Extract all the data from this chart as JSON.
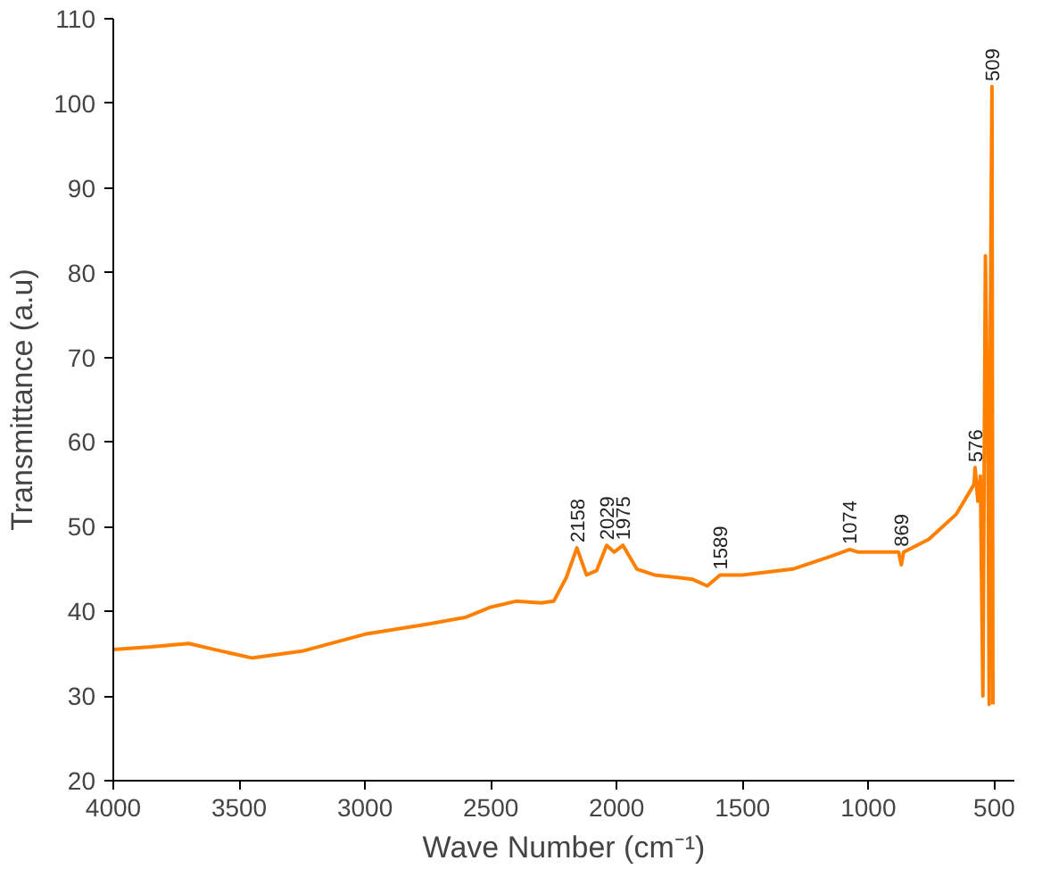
{
  "chart_data": {
    "type": "line",
    "xlabel": "Wave Number (cm⁻¹)",
    "ylabel": "Transmittance (a.u)",
    "x": [
      4000,
      3850,
      3700,
      3600,
      3450,
      3250,
      3000,
      2750,
      2600,
      2500,
      2400,
      2300,
      2250,
      2200,
      2158,
      2120,
      2080,
      2040,
      2010,
      1975,
      1920,
      1850,
      1700,
      1640,
      1589,
      1500,
      1300,
      1150,
      1074,
      1040,
      950,
      880,
      869,
      860,
      760,
      650,
      600,
      580,
      576,
      565,
      555,
      545,
      535,
      525,
      520,
      515,
      509,
      505
    ],
    "series": [
      {
        "color": "#ff8000",
        "values": [
          35.5,
          35.8,
          36.2,
          35.5,
          34.5,
          35.3,
          37.3,
          38.5,
          39.3,
          40.5,
          41.2,
          41,
          41.2,
          44,
          47.5,
          44.3,
          44.8,
          47.8,
          47,
          47.8,
          45,
          44.3,
          43.8,
          43,
          44.3,
          44.3,
          45,
          46.5,
          47.3,
          47,
          47,
          47,
          45.5,
          47,
          48.5,
          51.5,
          54,
          55,
          57,
          53,
          56,
          30,
          82,
          60,
          29,
          75,
          102,
          29
        ]
      }
    ],
    "annotations": [
      {
        "text": "2158",
        "x": 2158,
        "y": 47.5
      },
      {
        "text": "2029",
        "x": 2040,
        "y": 47.8
      },
      {
        "text": "1975",
        "x": 1975,
        "y": 47.8
      },
      {
        "text": "1589",
        "x": 1589,
        "y": 44.3
      },
      {
        "text": "1074",
        "x": 1074,
        "y": 47.3
      },
      {
        "text": "869",
        "x": 869,
        "y": 47
      },
      {
        "text": "576",
        "x": 576,
        "y": 57
      },
      {
        "text": "509",
        "x": 509,
        "y": 102
      }
    ],
    "xlim": [
      4000,
      420
    ],
    "ylim": [
      20,
      110
    ],
    "xticks": [
      4000,
      3500,
      3000,
      2500,
      2000,
      1500,
      1000,
      500
    ],
    "yticks": [
      20,
      30,
      40,
      50,
      60,
      70,
      80,
      90,
      100,
      110
    ],
    "grid": false,
    "line_style": "solid"
  }
}
